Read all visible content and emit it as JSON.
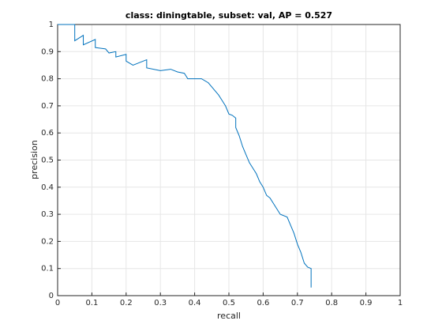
{
  "chart_data": {
    "type": "line",
    "title": "class: diningtable, subset: val, AP = 0.527",
    "xlabel": "recall",
    "ylabel": "precision",
    "x": [
      0,
      0.05,
      0.05,
      0.075,
      0.075,
      0.11,
      0.11,
      0.14,
      0.15,
      0.17,
      0.17,
      0.2,
      0.2,
      0.22,
      0.26,
      0.26,
      0.3,
      0.33,
      0.35,
      0.37,
      0.38,
      0.42,
      0.44,
      0.45,
      0.46,
      0.47,
      0.48,
      0.49,
      0.5,
      0.51,
      0.52,
      0.52,
      0.53,
      0.54,
      0.55,
      0.56,
      0.57,
      0.58,
      0.59,
      0.6,
      0.61,
      0.62,
      0.63,
      0.64,
      0.65,
      0.67,
      0.68,
      0.69,
      0.7,
      0.71,
      0.72,
      0.73,
      0.74,
      0.74
    ],
    "series": [
      {
        "name": "precision",
        "color": "#0072bd",
        "values": [
          1,
          1,
          0.94,
          0.96,
          0.925,
          0.945,
          0.915,
          0.91,
          0.895,
          0.9,
          0.88,
          0.89,
          0.865,
          0.85,
          0.87,
          0.84,
          0.83,
          0.835,
          0.825,
          0.82,
          0.8,
          0.8,
          0.785,
          0.77,
          0.755,
          0.74,
          0.72,
          0.7,
          0.67,
          0.665,
          0.655,
          0.62,
          0.59,
          0.55,
          0.52,
          0.49,
          0.47,
          0.45,
          0.42,
          0.4,
          0.37,
          0.36,
          0.34,
          0.32,
          0.3,
          0.29,
          0.26,
          0.23,
          0.19,
          0.16,
          0.12,
          0.105,
          0.1,
          0.03
        ]
      }
    ],
    "xlim": [
      0,
      1
    ],
    "ylim": [
      0,
      1
    ],
    "xticks": [
      0,
      0.1,
      0.2,
      0.3,
      0.4,
      0.5,
      0.6,
      0.7,
      0.8,
      0.9,
      1
    ],
    "yticks": [
      0,
      0.1,
      0.2,
      0.3,
      0.4,
      0.5,
      0.6,
      0.7,
      0.8,
      0.9,
      1
    ],
    "grid": true
  }
}
